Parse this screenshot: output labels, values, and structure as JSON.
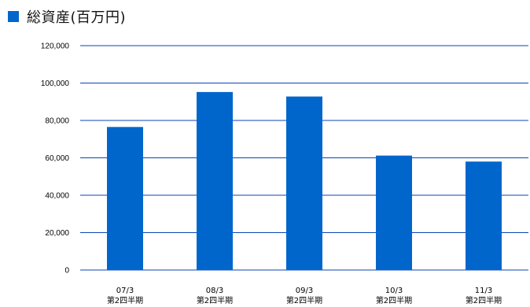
{
  "title": "総資産(百万円)",
  "colors": {
    "bar": "#0066cc",
    "grid": "#0a46b4",
    "title_square": "#0066cc"
  },
  "chart_data": {
    "type": "bar",
    "title": "総資産(百万円)",
    "categories": [
      [
        "07/3",
        "第2四半期"
      ],
      [
        "08/3",
        "第2四半期"
      ],
      [
        "09/3",
        "第2四半期"
      ],
      [
        "10/3",
        "第2四半期"
      ],
      [
        "11/3",
        "第2四半期"
      ]
    ],
    "values": [
      76500,
      95200,
      92800,
      61200,
      58000
    ],
    "ylim": [
      0,
      120000
    ],
    "yticks": [
      0,
      20000,
      40000,
      60000,
      80000,
      100000,
      120000
    ],
    "ytick_labels": [
      "0",
      "20,000",
      "40,000",
      "60,000",
      "80,000",
      "100,000",
      "120,000"
    ],
    "grid": true,
    "legend": "none"
  }
}
